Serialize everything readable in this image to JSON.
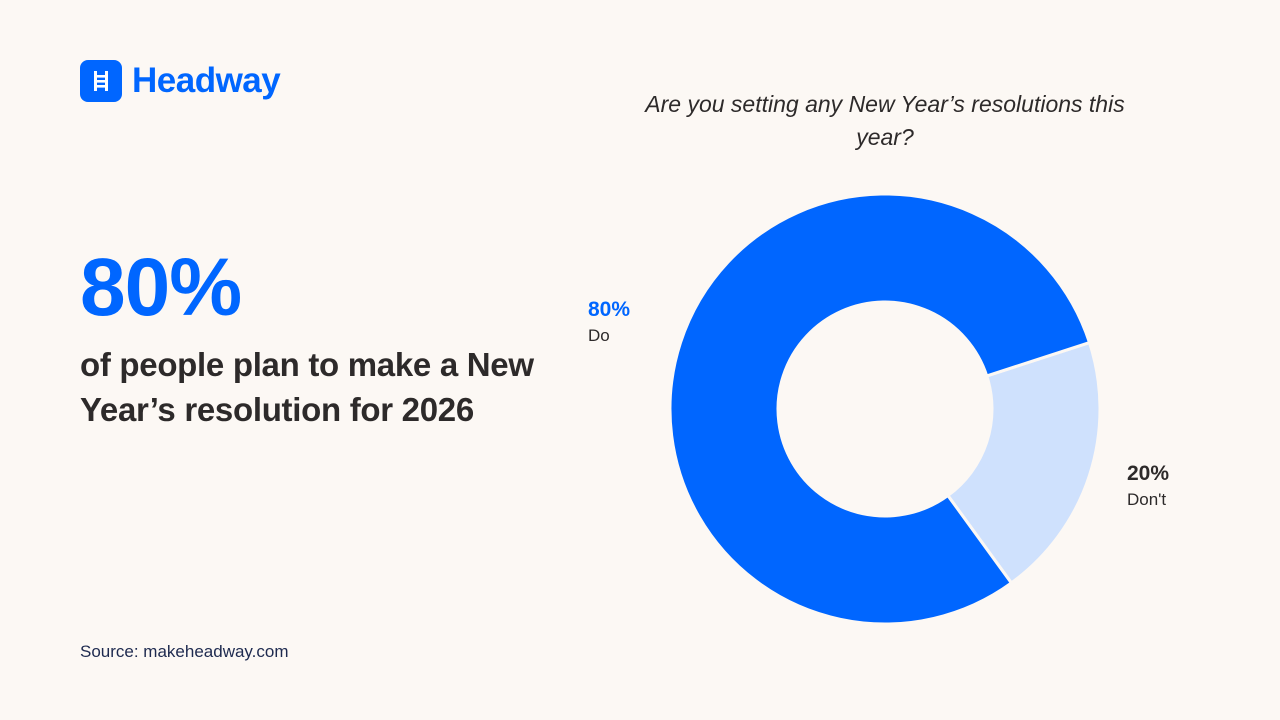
{
  "brand": {
    "name": "Headway",
    "icon": "ladder-icon",
    "color": "#0066ff"
  },
  "stat": {
    "value": "80%",
    "description": "of people plan to make a New Year’s resolution for 2026"
  },
  "source": "Source: makeheadway.com",
  "chart_data": {
    "type": "pie",
    "variant": "donut",
    "title": "Are you setting any New Year’s resolutions this year?",
    "slices": [
      {
        "label": "Do",
        "value": 80,
        "value_label": "80%",
        "color": "#0066ff",
        "label_color": "#0066ff"
      },
      {
        "label": "Don't",
        "value": 20,
        "value_label": "20%",
        "color": "#cfe1fd",
        "label_color": "#2d2a2a"
      }
    ]
  }
}
